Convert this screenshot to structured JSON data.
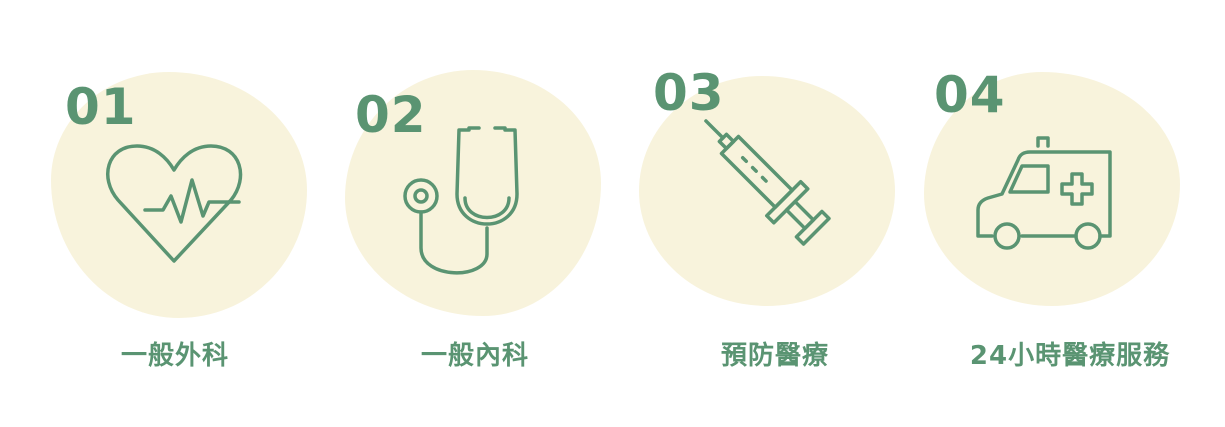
{
  "colors": {
    "accent": "#5a9472",
    "blob": "#f8f3dc",
    "background": "#ffffff"
  },
  "services": [
    {
      "number": "01",
      "label": "一般外科",
      "icon": "heart-pulse-icon"
    },
    {
      "number": "02",
      "label": "一般內科",
      "icon": "stethoscope-icon"
    },
    {
      "number": "03",
      "label": "預防醫療",
      "icon": "syringe-icon"
    },
    {
      "number": "04",
      "label": "24小時醫療服務",
      "icon": "ambulance-icon"
    }
  ]
}
